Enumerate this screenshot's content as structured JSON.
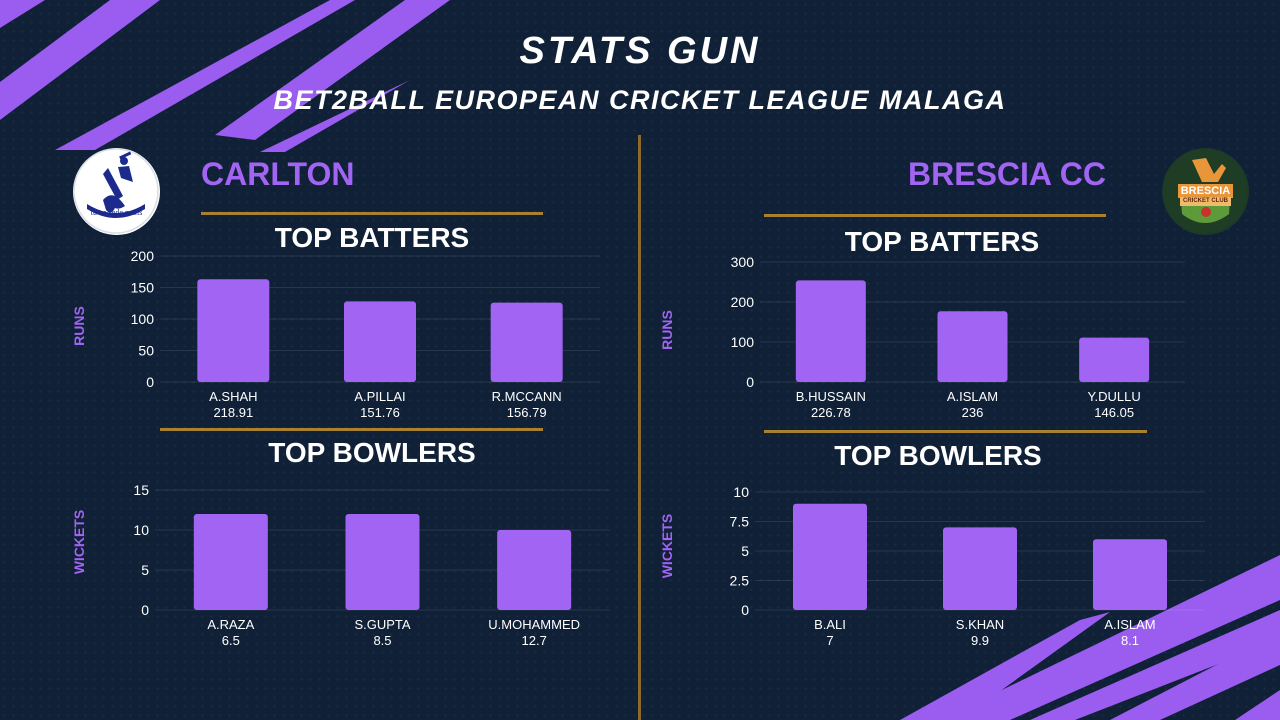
{
  "header": {
    "title": "STATS GUN",
    "subtitle": "BET2BALL EUROPEAN CRICKET LEAGUE MALAGA"
  },
  "teams": {
    "left": {
      "name": "CARLTON",
      "logo_text": "tu ne cede malis",
      "batters_title": "TOP BATTERS",
      "bowlers_title": "TOP BOWLERS"
    },
    "right": {
      "name": "BRESCIA CC",
      "logo_text": "BRESCIA",
      "logo_subtext": "CRICKET CLUB",
      "batters_title": "TOP BATTERS",
      "bowlers_title": "TOP BOWLERS"
    }
  },
  "colors": {
    "bar": "#a264f2",
    "accent": "#a264f2",
    "rule": "#a8802e",
    "background": "#0f2037"
  },
  "chart_data": [
    {
      "id": "left_batters",
      "type": "bar",
      "title": "TOP BATTERS",
      "ylabel": "RUNS",
      "categories": [
        "A.SHAH",
        "A.PILLAI",
        "R.MCCANN"
      ],
      "values": [
        163,
        128,
        126
      ],
      "data_labels": [
        "218.91",
        "151.76",
        "156.79"
      ],
      "ylim": [
        0,
        200
      ],
      "yticks": [
        "0",
        "50",
        "100",
        "150",
        "200"
      ],
      "grid": true
    },
    {
      "id": "left_bowlers",
      "type": "bar",
      "title": "TOP BOWLERS",
      "ylabel": "WICKETS",
      "categories": [
        "A.RAZA",
        "S.GUPTA",
        "U.MOHAMMED"
      ],
      "values": [
        12,
        12,
        10
      ],
      "data_labels": [
        "6.5",
        "8.5",
        "12.7"
      ],
      "ylim": [
        0,
        15
      ],
      "yticks": [
        "0",
        "5",
        "10",
        "15"
      ],
      "grid": true
    },
    {
      "id": "right_batters",
      "type": "bar",
      "title": "TOP BATTERS",
      "ylabel": "RUNS",
      "categories": [
        "B.HUSSAIN",
        "A.ISLAM",
        "Y.DULLU"
      ],
      "values": [
        254,
        177,
        111
      ],
      "data_labels": [
        "226.78",
        "236",
        "146.05"
      ],
      "ylim": [
        0,
        300
      ],
      "yticks": [
        "0",
        "100",
        "200",
        "300"
      ],
      "grid": true
    },
    {
      "id": "right_bowlers",
      "type": "bar",
      "title": "TOP BOWLERS",
      "ylabel": "WICKETS",
      "categories": [
        "B.ALI",
        "S.KHAN",
        "A.ISLAM"
      ],
      "values": [
        9,
        7,
        6
      ],
      "data_labels": [
        "7",
        "9.9",
        "8.1"
      ],
      "ylim": [
        0,
        10
      ],
      "yticks": [
        "0",
        "2.5",
        "5",
        "7.5",
        "10"
      ],
      "grid": true
    }
  ]
}
